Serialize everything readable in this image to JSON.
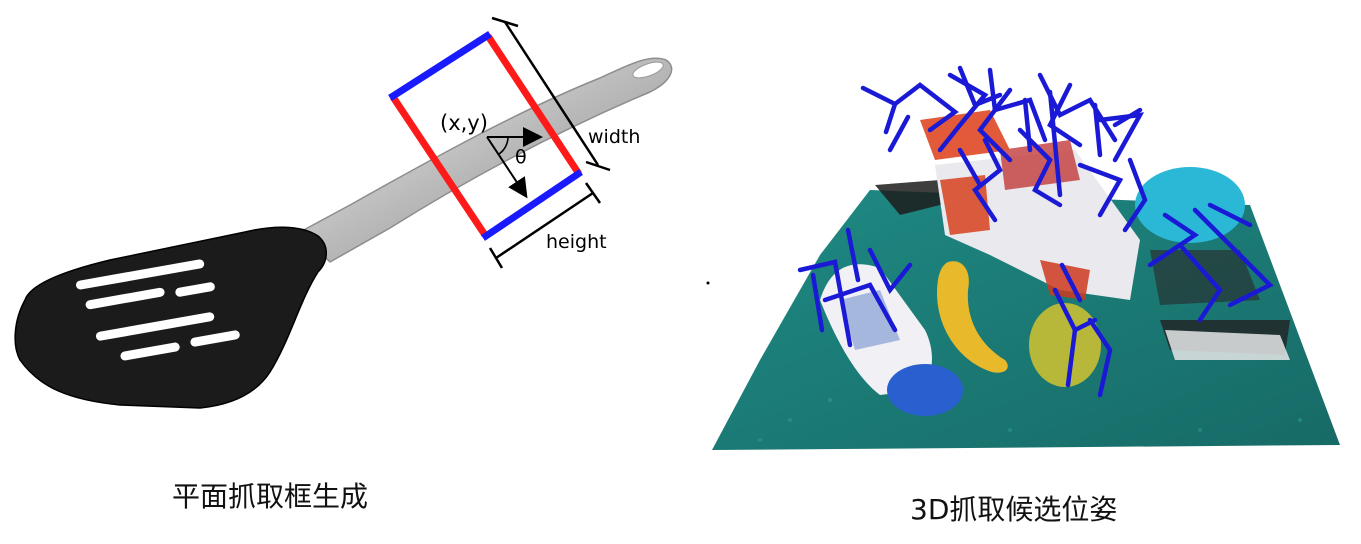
{
  "left_panel": {
    "caption": "平面抓取框生成",
    "labels": {
      "center": "(x,y)",
      "angle": "θ",
      "width": "width",
      "height": "height"
    }
  },
  "right_panel": {
    "caption": "3D抓取候选位姿"
  },
  "colors": {
    "grasp_width_edge": "#ff1a1a",
    "grasp_height_edge": "#1a1aff",
    "dimension_line": "#000000",
    "grasp_pose": "#1a1ad6",
    "table_surface": "#1e7f78"
  }
}
